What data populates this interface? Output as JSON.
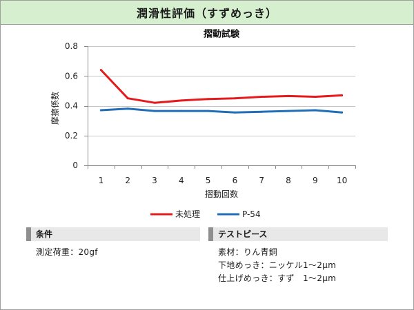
{
  "header": {
    "title": "潤滑性評価（すずめっき）"
  },
  "theme": {
    "header_bg": "#d6f0cf",
    "section_bg": "#e8e8e8",
    "section_accent": "#8f8f8f"
  },
  "chart_data": {
    "type": "line",
    "title": "摺動試験",
    "xlabel": "摺動回数",
    "ylabel": "摩擦係数",
    "categories": [
      "1",
      "2",
      "3",
      "4",
      "5",
      "6",
      "7",
      "8",
      "9",
      "10"
    ],
    "ylim": [
      0,
      0.8
    ],
    "yticks": [
      0,
      0.2,
      0.4,
      0.6,
      0.8
    ],
    "ytick_labels": [
      "0",
      "0.2",
      "0.4",
      "0.6",
      "0.8"
    ],
    "grid": true,
    "legend": "bottom",
    "series": [
      {
        "name": "未処理",
        "color": "#e41a1c",
        "values": [
          0.64,
          0.45,
          0.42,
          0.435,
          0.445,
          0.45,
          0.46,
          0.465,
          0.46,
          0.47
        ]
      },
      {
        "name": "P-54",
        "color": "#1f6eb7",
        "values": [
          0.37,
          0.38,
          0.365,
          0.365,
          0.365,
          0.355,
          0.36,
          0.365,
          0.37,
          0.355
        ]
      }
    ]
  },
  "conditions": {
    "heading": "条件",
    "lines": [
      "測定荷重：20gf"
    ]
  },
  "test_piece": {
    "heading": "テストピース",
    "lines": [
      "素材：りん青銅",
      "下地めっき：ニッケル1～2μm",
      "仕上げめっき：すず　1～2μm"
    ]
  }
}
